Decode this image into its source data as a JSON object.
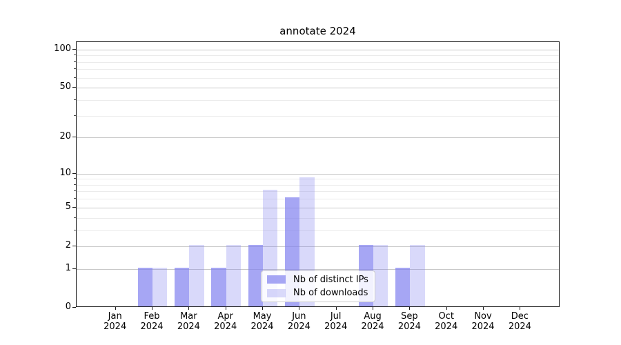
{
  "colors": {
    "bar_base": "#8080f0",
    "bar_distinct_ips": "rgba(128,128,240,0.7)",
    "bar_downloads": "rgba(128,128,240,0.3)",
    "grid_major": "#c8c8c8",
    "grid_minor": "#ebebeb",
    "axis": "#1a1a1a",
    "text": "#000000",
    "legend_border": "#cccccc"
  },
  "chart_data": {
    "type": "bar",
    "title": "annotate 2024",
    "xlabel": "",
    "ylabel": "",
    "x_months": [
      "Jan",
      "Feb",
      "Mar",
      "Apr",
      "May",
      "Jun",
      "Jul",
      "Aug",
      "Sep",
      "Oct",
      "Nov",
      "Dec"
    ],
    "x_year": "2024",
    "series": [
      {
        "name": "Nb of distinct IPs",
        "key": "distinct-ips",
        "color": "rgba(128,128,240,0.7)",
        "values": [
          0,
          1,
          1,
          1,
          2,
          6,
          0,
          2,
          1,
          0,
          0,
          0
        ]
      },
      {
        "name": "Nb of downloads",
        "key": "downloads",
        "color": "rgba(128,128,240,0.3)",
        "values": [
          0,
          1,
          2,
          2,
          7,
          9,
          0,
          2,
          2,
          0,
          0,
          0
        ]
      }
    ],
    "yscale": "log1p",
    "yticks_major": [
      0,
      1,
      2,
      5,
      10,
      20,
      50,
      100
    ],
    "yticks_minor": [
      3,
      4,
      6,
      7,
      8,
      9,
      30,
      40,
      60,
      70,
      80,
      90
    ],
    "ylim": [
      0,
      113
    ],
    "grid": true,
    "legend_position": "lower center"
  }
}
